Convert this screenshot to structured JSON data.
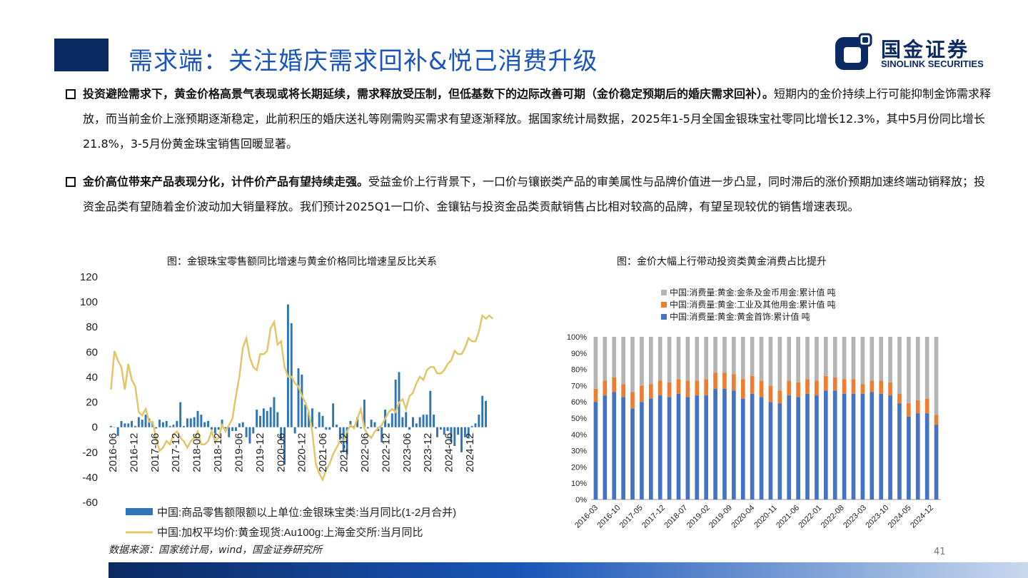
{
  "page_title": "需求端：关注婚庆需求回补&悦己消费升级",
  "logo": {
    "name": "国金证券",
    "sub": "SINOLINK SECURITIES"
  },
  "bullets": [
    {
      "bold": "投资避险需求下，黄金价格高景气表现或将长期延续，需求释放受压制，但低基数下的边际改善可期（金价稳定预期后的婚庆需求回补）。",
      "text": "短期内的金价持续上行可能抑制金饰需求释放，而当前金价上涨预期逐渐稳定，此前积压的婚庆送礼等刚需购买需求有望逐渐释放。据国家统计局数据，2025年1-5月全国金银珠宝社零同比增长12.3%，其中5月份同比增长21.8%，3-5月份黄金珠宝销售回暖显著。"
    },
    {
      "bold": "金价高位带来产品表现分化，计件价产品有望持续走强。",
      "text": "受益金价上行背景下，一口价与镶嵌类产品的审美属性与品牌价值进一步凸显，同时滞后的涨价预期加速终端动销释放；投资金品类有望随着金价波动加大销量释放。我们预计2025Q1一口价、金镶钻与投资金品类贡献销售占比相对较高的品牌，有望呈现较优的销售增速表现。"
    }
  ],
  "chart_left_caption": "图：金银珠宝零售额同比增速与黄金价格同比增速呈反比关系",
  "chart_right_caption": "图：金价大幅上行带动投资类黄金消费占比提升",
  "source": "数据来源：国家统计局，wind，国金证券研究所",
  "page_number": "41",
  "colors": {
    "accent": "#1a56b8",
    "navy": "#0b2a63",
    "bar": "#2e75b6",
    "line": "#e3c66a",
    "orange": "#ed7d31",
    "grey": "#b4b4b4",
    "blue": "#4472c4"
  },
  "chart_data": [
    {
      "type": "bar+line",
      "left_ylim": [
        -60,
        120
      ],
      "left_ticks": [
        "120",
        "100",
        "80",
        "60",
        "40",
        "20",
        "0",
        "-20",
        "-40",
        "-60"
      ],
      "right_ylim": [
        -20,
        50
      ],
      "right_ticks": [
        "50",
        "40",
        "30",
        "20",
        "10",
        "0",
        "-10",
        "-20"
      ],
      "x_tick_labels": [
        "2016-06",
        "2016-12",
        "2017-06",
        "2017-12",
        "2018-06",
        "2018-12",
        "2019-06",
        "2019-12",
        "2020-06",
        "2020-12",
        "2021-06",
        "2021-12",
        "2022-06",
        "2022-12",
        "2023-06",
        "2023-12",
        "2024-06",
        "2024-12"
      ],
      "series": [
        {
          "name": "中国:商品零售额限额以上单位:金银珠宝类:当月同比(1-2月合并)",
          "type": "bar",
          "axis": "left",
          "values": [
            1,
            0,
            -7,
            5,
            3,
            3,
            5,
            1,
            8,
            6,
            10,
            7,
            4,
            -1,
            6,
            4,
            5,
            1,
            2,
            5,
            20,
            1,
            7,
            7,
            8,
            13,
            10,
            4,
            5,
            -2,
            -5,
            -2,
            6,
            -1,
            -8,
            -3,
            -3,
            3,
            4,
            -8,
            -13,
            -5,
            14,
            9,
            15,
            13,
            16,
            24,
            12,
            -10,
            -30,
            98,
            83,
            -5,
            47,
            42,
            18,
            12,
            15,
            -1,
            12,
            9,
            -2,
            -2,
            19,
            2,
            -10,
            -20,
            -22,
            5,
            1,
            8,
            -1,
            22,
            -1,
            6,
            4,
            -3,
            -12,
            14,
            3,
            11,
            38,
            44,
            8,
            12,
            -2,
            8,
            3,
            8,
            10,
            10,
            29,
            10,
            -8,
            -2,
            -6,
            -3,
            -12,
            -15,
            -6,
            -20,
            -8,
            -9,
            1,
            3,
            10,
            25,
            21
          ]
        },
        {
          "name": "中国:加权平均价:黄金现货:Au100g:上海金交所:当月同比",
          "type": "line",
          "axis": "right",
          "values": [
            15,
            27,
            24,
            22,
            15,
            23,
            18,
            16,
            8,
            7,
            9,
            5,
            5,
            0,
            -4,
            -3,
            -1,
            -2,
            1,
            2,
            0,
            -1,
            -3,
            -1,
            0,
            2,
            -2,
            -2,
            -1,
            2,
            -1,
            0,
            4,
            2,
            4,
            6,
            13,
            19,
            28,
            31,
            25,
            22,
            21,
            26,
            26,
            27,
            34,
            36,
            29,
            30,
            22,
            19,
            19,
            17,
            16,
            13,
            11,
            8,
            2,
            -8,
            -11,
            -13,
            -10,
            -8,
            -5,
            -3,
            -1,
            -1,
            2,
            4,
            3,
            6,
            9,
            3,
            1,
            0,
            2,
            3,
            4,
            6,
            8,
            9,
            8,
            11,
            12,
            9,
            13,
            14,
            17,
            19,
            18,
            21,
            22,
            22,
            20,
            20,
            21,
            23,
            24,
            27,
            26,
            26,
            28,
            31,
            30,
            30,
            33,
            38,
            37,
            38,
            37
          ]
        }
      ]
    },
    {
      "type": "stacked bar",
      "ylim": [
        0,
        100
      ],
      "y_ticks": [
        "100%",
        "90%",
        "80%",
        "70%",
        "60%",
        "50%",
        "40%",
        "30%",
        "20%",
        "10%",
        "0%"
      ],
      "x_tick_labels": [
        "2016-03",
        "2016-10",
        "2017-05",
        "2017-12",
        "2018-07",
        "2019-02",
        "2019-09",
        "2020-04",
        "2020-11",
        "2021-06",
        "2022-01",
        "2022-08",
        "2023-03",
        "2023-10",
        "2024-05",
        "2024-12"
      ],
      "legend": [
        "中国:消费量:黄金:金条及金币用金:累计值 吨",
        "中国:消费量:黄金:工业及其他用金:累计值 吨",
        "中国:消费量:黄金:黄金首饰:累计值 吨"
      ],
      "series": [
        {
          "name": "中国:消费量:黄金:黄金首饰:累计值 吨",
          "values": [
            60,
            64,
            66,
            63,
            56,
            60,
            62,
            64,
            63,
            65,
            63,
            64,
            64,
            68,
            68,
            67,
            62,
            65,
            63,
            60,
            59,
            64,
            63,
            65,
            64,
            67,
            67,
            65,
            65,
            65,
            66,
            65,
            64,
            59,
            51,
            53,
            53,
            46
          ]
        },
        {
          "name": "中国:消费量:黄金:工业及其他用金:累计值 吨",
          "values": [
            8,
            9,
            9,
            8,
            10,
            10,
            9,
            9,
            9,
            9,
            10,
            9,
            10,
            10,
            10,
            10,
            12,
            11,
            10,
            10,
            8,
            9,
            9,
            9,
            9,
            9,
            8,
            9,
            9,
            6,
            7,
            8,
            8,
            6,
            8,
            8,
            9,
            6
          ]
        },
        {
          "name": "中国:消费量:黄金:金条及金币用金:累计值 吨",
          "values": [
            32,
            27,
            25,
            29,
            34,
            30,
            29,
            27,
            28,
            26,
            27,
            27,
            26,
            22,
            22,
            23,
            26,
            24,
            27,
            30,
            33,
            27,
            28,
            26,
            27,
            24,
            25,
            26,
            26,
            29,
            27,
            27,
            28,
            35,
            41,
            39,
            38,
            48
          ]
        }
      ]
    }
  ]
}
